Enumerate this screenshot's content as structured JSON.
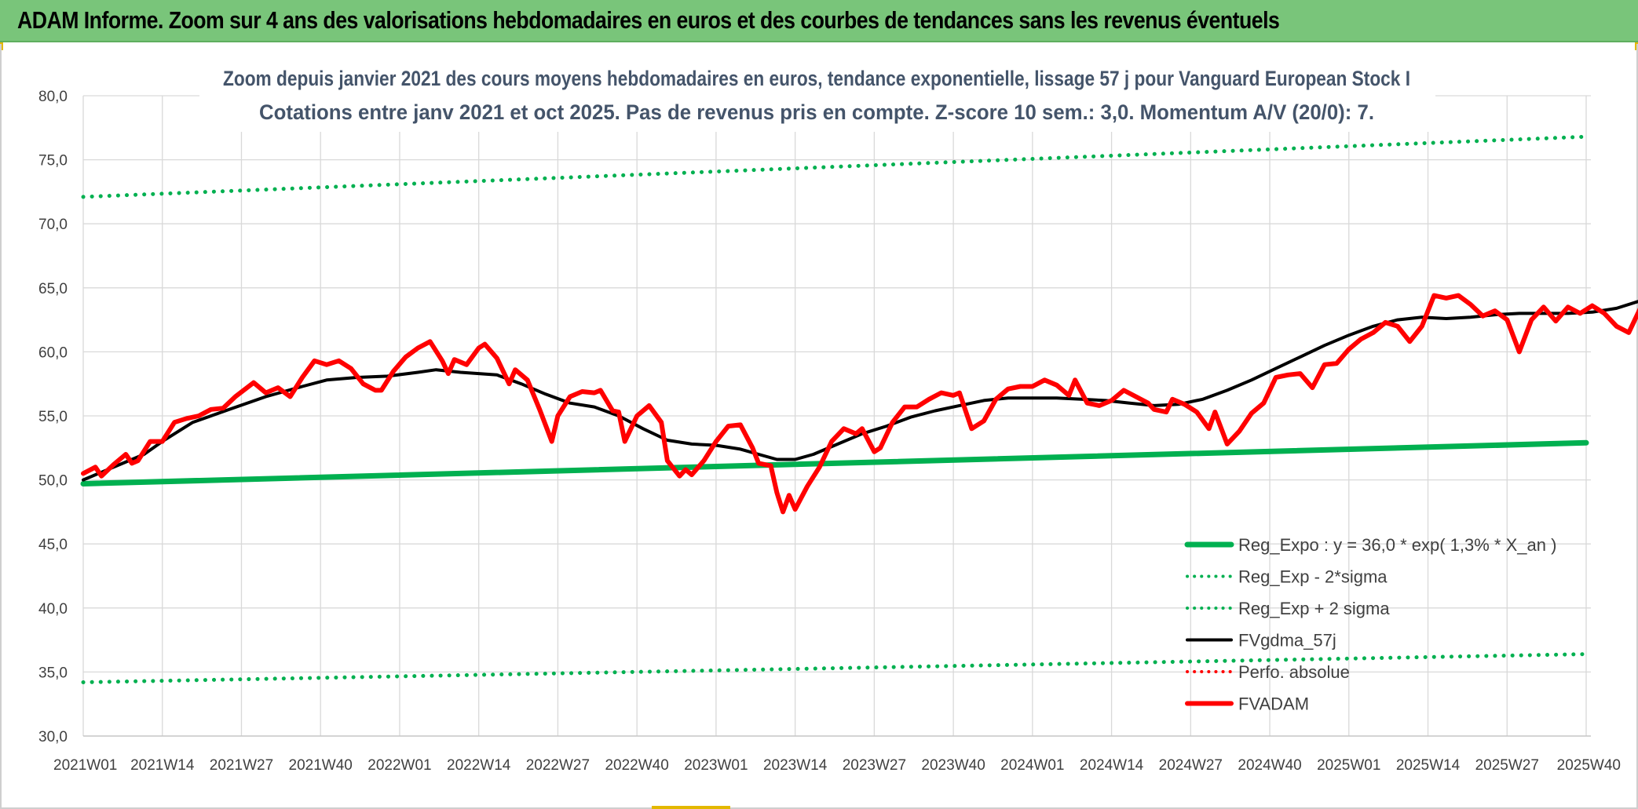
{
  "banner": {
    "title": "ADAM Informe. Zoom sur 4 ans des valorisations hebdomadaires en euros et des courbes de tendances sans les revenus éventuels"
  },
  "chart_data": {
    "type": "line",
    "title": "Zoom depuis janvier 2021 des cours moyens hebdomadaires en euros, tendance exponentielle, lissage 57 j pour Vanguard European Stock I",
    "subtitle": "Cotations entre janv 2021 et oct 2025. Pas de revenus pris en compte. Z-score 10 sem.: 3,0. Momentum A/V (20/0): 7.",
    "xlabel": "",
    "ylabel": "",
    "ylim": [
      30,
      80
    ],
    "yticks": [
      "30,0",
      "35,0",
      "40,0",
      "45,0",
      "50,0",
      "55,0",
      "60,0",
      "65,0",
      "70,0",
      "75,0",
      "80,0"
    ],
    "ytick_values": [
      30,
      35,
      40,
      45,
      50,
      55,
      60,
      65,
      70,
      75,
      80
    ],
    "x_categories": [
      "2021W01",
      "2021W14",
      "2021W27",
      "2021W40",
      "2022W01",
      "2022W14",
      "2022W27",
      "2022W40",
      "2023W01",
      "2023W14",
      "2023W27",
      "2023W40",
      "2024W01",
      "2024W14",
      "2024W27",
      "2024W40",
      "2025W01",
      "2025W14",
      "2025W27",
      "2025W40"
    ],
    "x_range_weeks": [
      0,
      247
    ],
    "grid": true,
    "legend_position": "bottom-right",
    "series": [
      {
        "name": "Reg_Expo : y = 36,0 * exp( 1,3% *  X_an )",
        "color": "#00b050",
        "style": "solid",
        "points": [
          [
            0,
            49.7
          ],
          [
            247,
            52.9
          ]
        ]
      },
      {
        "name": "Reg_Exp - 2*sigma",
        "color": "#00b050",
        "style": "dotted",
        "points": [
          [
            0,
            34.2
          ],
          [
            247,
            36.4
          ]
        ]
      },
      {
        "name": "Reg_Exp + 2 sigma",
        "color": "#00b050",
        "style": "dotted",
        "points": [
          [
            0,
            72.1
          ],
          [
            247,
            76.8
          ]
        ]
      },
      {
        "name": "FVgdma_57j",
        "color": "#000000",
        "style": "solid",
        "points": [
          [
            0,
            50.0
          ],
          [
            6,
            51.2
          ],
          [
            10,
            52.0
          ],
          [
            13,
            53.0
          ],
          [
            18,
            54.5
          ],
          [
            24,
            55.5
          ],
          [
            30,
            56.5
          ],
          [
            36,
            57.3
          ],
          [
            40,
            57.8
          ],
          [
            45,
            58.0
          ],
          [
            50,
            58.1
          ],
          [
            55,
            58.4
          ],
          [
            58,
            58.6
          ],
          [
            62,
            58.4
          ],
          [
            68,
            58.2
          ],
          [
            72,
            57.5
          ],
          [
            76,
            56.7
          ],
          [
            80,
            56.0
          ],
          [
            84,
            55.7
          ],
          [
            88,
            55.0
          ],
          [
            92,
            54.0
          ],
          [
            96,
            53.1
          ],
          [
            100,
            52.8
          ],
          [
            104,
            52.7
          ],
          [
            108,
            52.4
          ],
          [
            111,
            52.0
          ],
          [
            114,
            51.6
          ],
          [
            117,
            51.6
          ],
          [
            120,
            52.0
          ],
          [
            124,
            52.8
          ],
          [
            128,
            53.6
          ],
          [
            132,
            54.2
          ],
          [
            136,
            54.9
          ],
          [
            140,
            55.4
          ],
          [
            144,
            55.8
          ],
          [
            148,
            56.2
          ],
          [
            152,
            56.4
          ],
          [
            156,
            56.4
          ],
          [
            160,
            56.4
          ],
          [
            164,
            56.3
          ],
          [
            168,
            56.2
          ],
          [
            172,
            56.0
          ],
          [
            176,
            55.8
          ],
          [
            180,
            55.9
          ],
          [
            184,
            56.3
          ],
          [
            188,
            57.0
          ],
          [
            192,
            57.8
          ],
          [
            196,
            58.7
          ],
          [
            200,
            59.6
          ],
          [
            204,
            60.5
          ],
          [
            208,
            61.3
          ],
          [
            212,
            62.0
          ],
          [
            216,
            62.5
          ],
          [
            220,
            62.7
          ],
          [
            224,
            62.6
          ],
          [
            228,
            62.7
          ],
          [
            232,
            62.9
          ],
          [
            236,
            63.0
          ],
          [
            240,
            63.0
          ],
          [
            244,
            63.0
          ],
          [
            248,
            63.1
          ],
          [
            252,
            63.4
          ],
          [
            256,
            64.0
          ],
          [
            260,
            64.7
          ],
          [
            264,
            65.0
          ],
          [
            267,
            65.0
          ],
          [
            270,
            64.5
          ],
          [
            274,
            65.2
          ],
          [
            278,
            66.0
          ],
          [
            282,
            66.4
          ],
          [
            286,
            66.7
          ],
          [
            290,
            67.0
          ],
          [
            294,
            67.2
          ],
          [
            298,
            67.6
          ]
        ]
      },
      {
        "name": "Perfo. absolue",
        "color": "#ff0000",
        "style": "dotted",
        "points": []
      },
      {
        "name": "FVADAM",
        "color": "#ff0000",
        "style": "solid",
        "points": [
          [
            0,
            50.5
          ],
          [
            2,
            51.0
          ],
          [
            3,
            50.3
          ],
          [
            5,
            51.2
          ],
          [
            7,
            52.0
          ],
          [
            8,
            51.3
          ],
          [
            9,
            51.5
          ],
          [
            11,
            53.0
          ],
          [
            13,
            53.0
          ],
          [
            15,
            54.5
          ],
          [
            17,
            54.8
          ],
          [
            19,
            55.0
          ],
          [
            21,
            55.5
          ],
          [
            23,
            55.6
          ],
          [
            25,
            56.5
          ],
          [
            28,
            57.6
          ],
          [
            30,
            56.8
          ],
          [
            32,
            57.2
          ],
          [
            34,
            56.5
          ],
          [
            36,
            58.0
          ],
          [
            38,
            59.3
          ],
          [
            40,
            59.0
          ],
          [
            42,
            59.3
          ],
          [
            44,
            58.7
          ],
          [
            46,
            57.5
          ],
          [
            48,
            57.0
          ],
          [
            49,
            57.0
          ],
          [
            51,
            58.5
          ],
          [
            53,
            59.6
          ],
          [
            55,
            60.3
          ],
          [
            57,
            60.8
          ],
          [
            59,
            59.3
          ],
          [
            60,
            58.3
          ],
          [
            61,
            59.4
          ],
          [
            63,
            59.0
          ],
          [
            65,
            60.3
          ],
          [
            66,
            60.6
          ],
          [
            68,
            59.5
          ],
          [
            70,
            57.5
          ],
          [
            71,
            58.6
          ],
          [
            73,
            57.8
          ],
          [
            75,
            55.5
          ],
          [
            77,
            53.0
          ],
          [
            78,
            55.0
          ],
          [
            80,
            56.5
          ],
          [
            82,
            56.9
          ],
          [
            84,
            56.8
          ],
          [
            85,
            57.0
          ],
          [
            87,
            55.4
          ],
          [
            88,
            55.3
          ],
          [
            89,
            53.0
          ],
          [
            91,
            55.0
          ],
          [
            93,
            55.8
          ],
          [
            95,
            54.5
          ],
          [
            96,
            51.5
          ],
          [
            98,
            50.3
          ],
          [
            99,
            50.8
          ],
          [
            100,
            50.4
          ],
          [
            102,
            51.5
          ],
          [
            104,
            53.0
          ],
          [
            106,
            54.2
          ],
          [
            108,
            54.3
          ],
          [
            110,
            52.5
          ],
          [
            111,
            51.3
          ],
          [
            113,
            51.1
          ],
          [
            114,
            49.0
          ],
          [
            115,
            47.5
          ],
          [
            116,
            48.8
          ],
          [
            117,
            47.7
          ],
          [
            119,
            49.5
          ],
          [
            121,
            51.0
          ],
          [
            123,
            53.0
          ],
          [
            125,
            54.0
          ],
          [
            127,
            53.6
          ],
          [
            128,
            54.0
          ],
          [
            130,
            52.2
          ],
          [
            131,
            52.5
          ],
          [
            133,
            54.5
          ],
          [
            135,
            55.7
          ],
          [
            137,
            55.7
          ],
          [
            139,
            56.3
          ],
          [
            141,
            56.8
          ],
          [
            143,
            56.6
          ],
          [
            144,
            56.8
          ],
          [
            146,
            54.0
          ],
          [
            148,
            54.6
          ],
          [
            150,
            56.3
          ],
          [
            152,
            57.1
          ],
          [
            154,
            57.3
          ],
          [
            156,
            57.3
          ],
          [
            158,
            57.8
          ],
          [
            160,
            57.4
          ],
          [
            162,
            56.6
          ],
          [
            163,
            57.8
          ],
          [
            165,
            56.0
          ],
          [
            167,
            55.8
          ],
          [
            169,
            56.2
          ],
          [
            171,
            57.0
          ],
          [
            173,
            56.5
          ],
          [
            175,
            56.0
          ],
          [
            176,
            55.5
          ],
          [
            178,
            55.3
          ],
          [
            179,
            56.3
          ],
          [
            181,
            55.9
          ],
          [
            183,
            55.3
          ],
          [
            185,
            54.0
          ],
          [
            186,
            55.3
          ],
          [
            188,
            52.8
          ],
          [
            190,
            53.8
          ],
          [
            192,
            55.2
          ],
          [
            194,
            56.0
          ],
          [
            196,
            58.0
          ],
          [
            198,
            58.2
          ],
          [
            200,
            58.3
          ],
          [
            202,
            57.2
          ],
          [
            204,
            59.0
          ],
          [
            206,
            59.1
          ],
          [
            208,
            60.2
          ],
          [
            210,
            61.0
          ],
          [
            212,
            61.5
          ],
          [
            214,
            62.3
          ],
          [
            216,
            62.0
          ],
          [
            218,
            60.8
          ],
          [
            220,
            62.0
          ],
          [
            222,
            64.4
          ],
          [
            224,
            64.2
          ],
          [
            226,
            64.4
          ],
          [
            228,
            63.7
          ],
          [
            230,
            62.8
          ],
          [
            232,
            63.2
          ],
          [
            234,
            62.5
          ],
          [
            236,
            60.0
          ],
          [
            238,
            62.5
          ],
          [
            240,
            63.5
          ],
          [
            242,
            62.4
          ],
          [
            244,
            63.5
          ],
          [
            246,
            63.0
          ],
          [
            248,
            63.6
          ],
          [
            250,
            63.0
          ],
          [
            252,
            62.0
          ],
          [
            254,
            61.5
          ],
          [
            256,
            63.5
          ],
          [
            258,
            61.2
          ],
          [
            260,
            61.5
          ],
          [
            262,
            63.0
          ],
          [
            264,
            65.0
          ],
          [
            266,
            66.8
          ],
          [
            268,
            67.2
          ],
          [
            270,
            67.5
          ],
          [
            271,
            65.5
          ],
          [
            272,
            66.6
          ],
          [
            274,
            66.0
          ],
          [
            276,
            59.0
          ],
          [
            278,
            62.5
          ],
          [
            280,
            65.0
          ],
          [
            282,
            66.5
          ],
          [
            284,
            67.8
          ],
          [
            285,
            67.6
          ],
          [
            287,
            66.8
          ],
          [
            289,
            65.8
          ],
          [
            291,
            65.5
          ],
          [
            293,
            66.8
          ],
          [
            295,
            66.2
          ],
          [
            297,
            67.0
          ],
          [
            299,
            66.3
          ],
          [
            301,
            68.0
          ],
          [
            303,
            67.5
          ],
          [
            305,
            66.8
          ],
          [
            306,
            67.8
          ],
          [
            308,
            67.5
          ],
          [
            309,
            67.2
          ],
          [
            310,
            68.4
          ]
        ]
      }
    ]
  }
}
